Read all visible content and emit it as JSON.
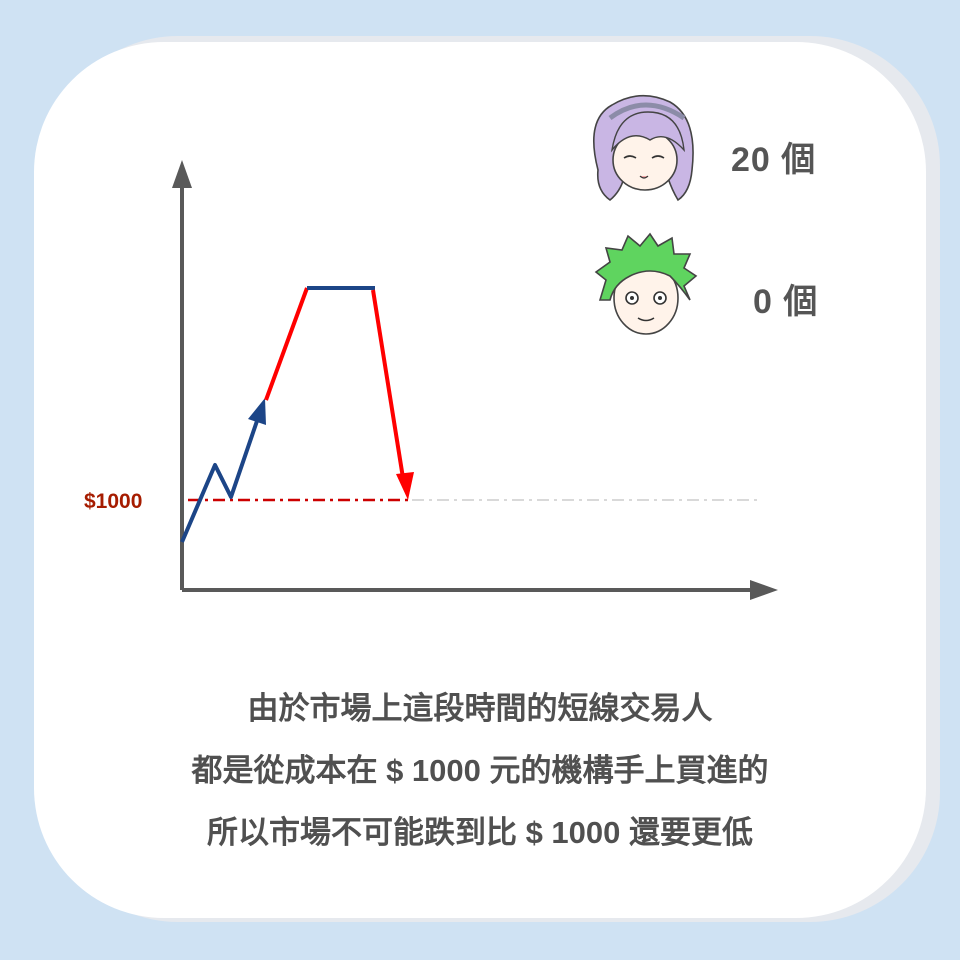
{
  "price_label": "$1000",
  "characters": [
    {
      "name": "purple-hair-girl",
      "count": "20 個"
    },
    {
      "name": "green-hair-boy",
      "count": "0 個"
    }
  ],
  "caption": {
    "line1": "由於市場上這段時間的短線交易人",
    "line2": "都是從成本在 $ 1000 元的機構手上買進的",
    "line3": "所以市場不可能跌到比 $ 1000 還要更低"
  },
  "colors": {
    "background": "#cfe2f3",
    "axis": "#595959",
    "rise": "#1c4587",
    "fall": "#ff0000",
    "level": "#cc0000"
  }
}
